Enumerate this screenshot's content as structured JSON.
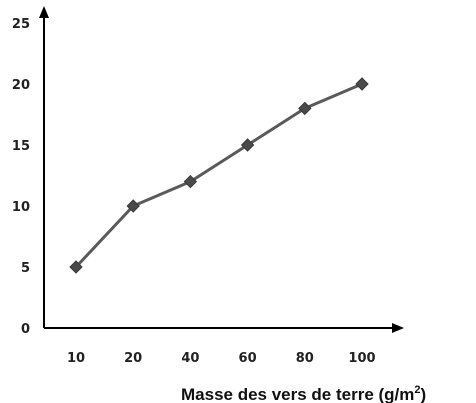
{
  "chart_data": {
    "type": "line",
    "title": "",
    "xlabel": "Masse des vers de terre (g/m²)",
    "xlabel_base": "Masse des vers de terre (g/m",
    "xlabel_sup": "2",
    "xlabel_close": ")",
    "ylabel": "",
    "categories": [
      "10",
      "20",
      "40",
      "60",
      "80",
      "100"
    ],
    "series": [
      {
        "values": [
          5,
          10,
          12,
          15,
          18,
          20
        ]
      }
    ],
    "yticks": [
      "0",
      "5",
      "10",
      "15",
      "20",
      "25"
    ],
    "ylim": [
      0,
      25
    ],
    "grid": false,
    "legend": "none",
    "marker": "diamond",
    "line_color": "#5a5a5a",
    "marker_color": "#4a4a4a",
    "axis_color": "#000000"
  }
}
